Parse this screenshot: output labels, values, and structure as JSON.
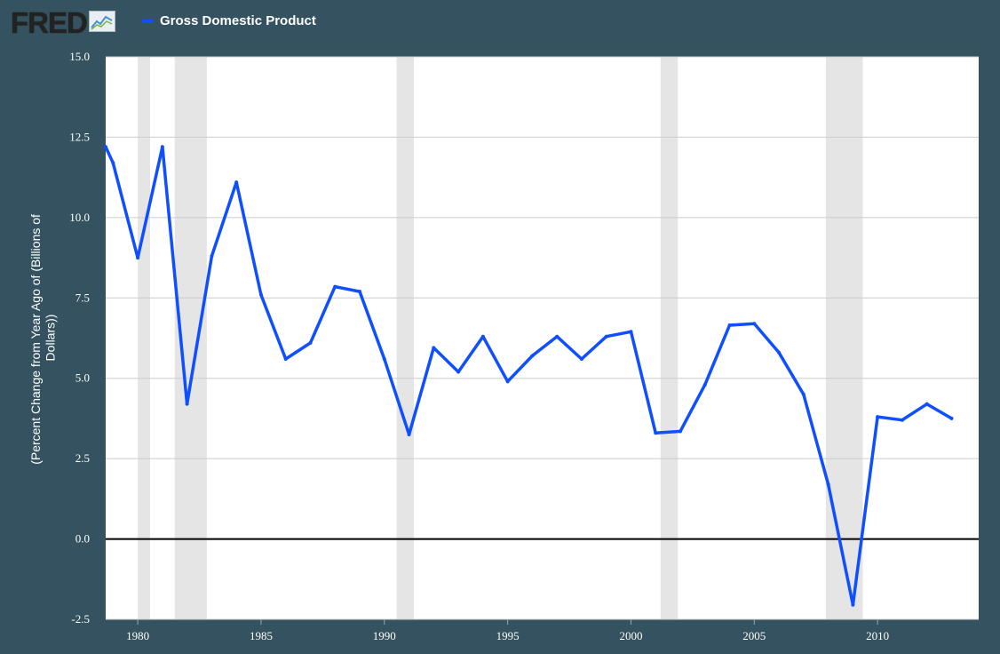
{
  "brand": {
    "name": "FRED",
    "logo_icon": "line-chart-icon"
  },
  "legend": {
    "series_label": "Gross Domestic Product",
    "color": "#0f4fff"
  },
  "colors": {
    "background": "#34525f",
    "plot_background": "#ffffff",
    "grid": "#cccccc",
    "recession": "#e5e5e5",
    "zero_line": "#000000",
    "series": "#0f4fff"
  },
  "chart_data": {
    "type": "line",
    "title": "",
    "ylabel_lines": [
      "(Percent Change from Year Ago of (Billions of",
      "Dollars))"
    ],
    "xlim": [
      1978.7,
      2014.1
    ],
    "ylim": [
      -2.5,
      15.0
    ],
    "yticks": [
      -2.5,
      0.0,
      2.5,
      5.0,
      7.5,
      10.0,
      12.5,
      15.0
    ],
    "ytick_labels": [
      "-2.5",
      "0.0",
      "2.5",
      "5.0",
      "7.5",
      "10.0",
      "12.5",
      "15.0"
    ],
    "xticks": [
      1980,
      1985,
      1990,
      1995,
      2000,
      2005,
      2010
    ],
    "xtick_labels": [
      "1980",
      "1985",
      "1990",
      "1995",
      "2000",
      "2005",
      "2010"
    ],
    "grid": true,
    "legend_position": "top-left",
    "recessions": [
      [
        1980.0,
        1980.5
      ],
      [
        1981.5,
        1982.8
      ],
      [
        1990.5,
        1991.2
      ],
      [
        2001.2,
        2001.9
      ],
      [
        2007.9,
        2009.4
      ]
    ],
    "series": [
      {
        "name": "Gross Domestic Product",
        "x": [
          1978.7,
          1979,
          1980,
          1981,
          1982,
          1983,
          1984,
          1985,
          1986,
          1987,
          1988,
          1989,
          1990,
          1991,
          1992,
          1993,
          1994,
          1995,
          1996,
          1997,
          1998,
          1999,
          2000,
          2001,
          2002,
          2003,
          2004,
          2005,
          2006,
          2007,
          2008,
          2009,
          2010,
          2011,
          2012,
          2013
        ],
        "values": [
          12.2,
          11.7,
          8.75,
          12.2,
          4.2,
          8.8,
          11.1,
          7.6,
          5.6,
          6.1,
          7.85,
          7.7,
          5.6,
          3.25,
          5.95,
          5.2,
          6.3,
          4.9,
          5.7,
          6.3,
          5.6,
          6.3,
          6.45,
          3.3,
          3.35,
          4.8,
          6.65,
          6.7,
          5.8,
          4.5,
          1.7,
          -2.05,
          3.8,
          3.7,
          4.2,
          3.75
        ]
      }
    ]
  }
}
